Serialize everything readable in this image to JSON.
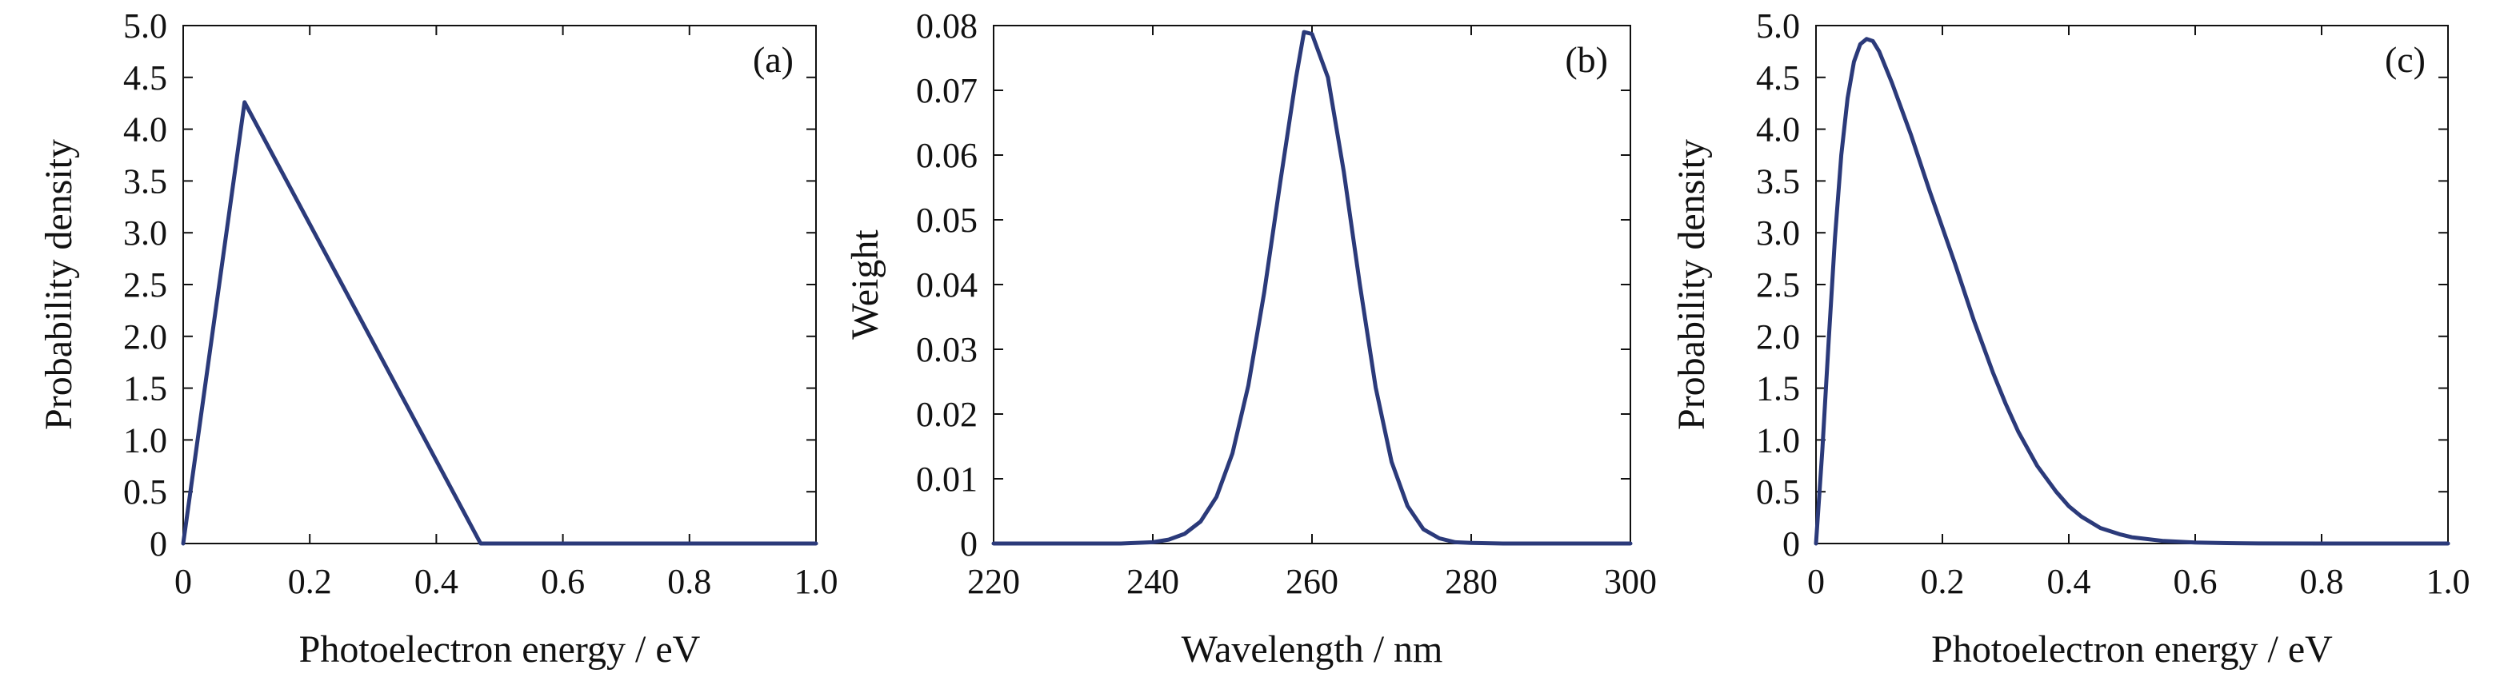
{
  "chart_data": [
    {
      "type": "line",
      "panel_label": "(a)",
      "xlabel": "Photoelectron energy / eV",
      "ylabel": "Probability density",
      "xlim": [
        0,
        1.0
      ],
      "ylim": [
        0,
        5.0
      ],
      "xticks": [
        0,
        0.2,
        0.4,
        0.6,
        0.8,
        1.0
      ],
      "xtick_labels": [
        "0",
        "0.2",
        "0.4",
        "0.6",
        "0.8",
        "1.0"
      ],
      "yticks": [
        0,
        0.5,
        1.0,
        1.5,
        2.0,
        2.5,
        3.0,
        3.5,
        4.0,
        4.5,
        5.0
      ],
      "ytick_labels": [
        "0",
        "0.5",
        "1.0",
        "1.5",
        "2.0",
        "2.5",
        "3.0",
        "3.5",
        "4.0",
        "4.5",
        "5.0"
      ],
      "line_color": "#2b3a7a",
      "series": [
        {
          "x": [
            0,
            0.097,
            0.47,
            1.0
          ],
          "y": [
            0,
            4.26,
            0,
            0
          ]
        }
      ]
    },
    {
      "type": "line",
      "panel_label": "(b)",
      "xlabel": "Wavelength / nm",
      "ylabel": "Weight",
      "xlim": [
        220,
        300
      ],
      "ylim": [
        0,
        0.08
      ],
      "xticks": [
        220,
        240,
        260,
        280,
        300
      ],
      "xtick_labels": [
        "220",
        "240",
        "260",
        "280",
        "300"
      ],
      "yticks": [
        0,
        0.01,
        0.02,
        0.03,
        0.04,
        0.05,
        0.06,
        0.07,
        0.08
      ],
      "ytick_labels": [
        "0",
        "0.01",
        "0.02",
        "0.03",
        "0.04",
        "0.05",
        "0.06",
        "0.07",
        "0.08"
      ],
      "line_color": "#2b3a7a",
      "series": [
        {
          "x": [
            220,
            236,
            240,
            242,
            244,
            246,
            248,
            250,
            252,
            254,
            256,
            258,
            259,
            260,
            262,
            264,
            266,
            268,
            270,
            272,
            274,
            276,
            278,
            280,
            284,
            300
          ],
          "y": [
            0,
            0,
            0.0002,
            0.0006,
            0.0015,
            0.0034,
            0.0072,
            0.0139,
            0.0244,
            0.0388,
            0.0557,
            0.072,
            0.079,
            0.0787,
            0.072,
            0.0574,
            0.0401,
            0.0241,
            0.0126,
            0.0058,
            0.0022,
            0.0008,
            0.0002,
            0.0001,
            0,
            0
          ]
        }
      ]
    },
    {
      "type": "line",
      "panel_label": "(c)",
      "xlabel": "Photoelectron energy / eV",
      "ylabel": "Probability density",
      "xlim": [
        0,
        1.0
      ],
      "ylim": [
        0,
        5.0
      ],
      "xticks": [
        0,
        0.2,
        0.4,
        0.6,
        0.8,
        1.0
      ],
      "xtick_labels": [
        "0",
        "0.2",
        "0.4",
        "0.6",
        "0.8",
        "1.0"
      ],
      "yticks": [
        0,
        0.5,
        1.0,
        1.5,
        2.0,
        2.5,
        3.0,
        3.5,
        4.0,
        4.5,
        5.0
      ],
      "ytick_labels": [
        "0",
        "0.5",
        "1.0",
        "1.5",
        "2.0",
        "2.5",
        "3.0",
        "3.5",
        "4.0",
        "4.5",
        "5.0"
      ],
      "line_color": "#2b3a7a",
      "series": [
        {
          "x": [
            0,
            0.01,
            0.02,
            0.03,
            0.04,
            0.05,
            0.06,
            0.07,
            0.08,
            0.09,
            0.1,
            0.12,
            0.15,
            0.18,
            0.2,
            0.22,
            0.25,
            0.28,
            0.3,
            0.32,
            0.35,
            0.38,
            0.4,
            0.42,
            0.45,
            0.48,
            0.5,
            0.55,
            0.6,
            0.65,
            0.7,
            0.8,
            1.0
          ],
          "y": [
            0,
            0.9,
            1.95,
            2.95,
            3.75,
            4.3,
            4.65,
            4.82,
            4.87,
            4.85,
            4.75,
            4.45,
            3.95,
            3.4,
            3.05,
            2.7,
            2.15,
            1.65,
            1.35,
            1.08,
            0.75,
            0.5,
            0.36,
            0.26,
            0.15,
            0.09,
            0.06,
            0.025,
            0.01,
            0.004,
            0.001,
            0,
            0
          ]
        }
      ]
    }
  ]
}
